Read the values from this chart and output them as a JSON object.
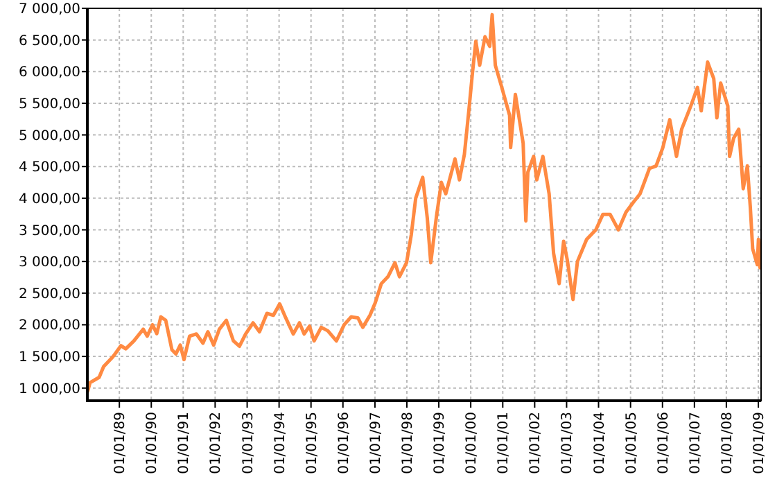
{
  "chart_data": {
    "type": "line",
    "grid": true,
    "marker": "none",
    "line_style": "solid",
    "xlim": [
      "1988-01-01",
      "2009-02-01"
    ],
    "ylim": [
      800,
      7000
    ],
    "xticks": [
      {
        "value": "1989-01-01",
        "label": "01/01/89"
      },
      {
        "value": "1990-01-01",
        "label": "01/01/90"
      },
      {
        "value": "1991-01-01",
        "label": "01/01/91"
      },
      {
        "value": "1992-01-01",
        "label": "01/01/92"
      },
      {
        "value": "1993-01-01",
        "label": "01/01/93"
      },
      {
        "value": "1994-01-01",
        "label": "01/01/94"
      },
      {
        "value": "1995-01-01",
        "label": "01/01/95"
      },
      {
        "value": "1996-01-01",
        "label": "01/01/96"
      },
      {
        "value": "1997-01-01",
        "label": "01/01/97"
      },
      {
        "value": "1998-01-01",
        "label": "01/01/98"
      },
      {
        "value": "1999-01-01",
        "label": "01/01/99"
      },
      {
        "value": "2000-01-01",
        "label": "01/01/00"
      },
      {
        "value": "2001-01-01",
        "label": "01/01/01"
      },
      {
        "value": "2002-01-01",
        "label": "01/01/02"
      },
      {
        "value": "2003-01-01",
        "label": "01/01/03"
      },
      {
        "value": "2004-01-01",
        "label": "01/01/04"
      },
      {
        "value": "2005-01-01",
        "label": "01/01/05"
      },
      {
        "value": "2006-01-01",
        "label": "01/01/06"
      },
      {
        "value": "2007-01-01",
        "label": "01/01/07"
      },
      {
        "value": "2008-01-01",
        "label": "01/01/08"
      },
      {
        "value": "2009-01-01",
        "label": "01/01/09"
      }
    ],
    "yticks": [
      {
        "value": 1000,
        "label": "1 000,00"
      },
      {
        "value": 1500,
        "label": "1 500,00"
      },
      {
        "value": 2000,
        "label": "2 000,00"
      },
      {
        "value": 2500,
        "label": "2 500,00"
      },
      {
        "value": 3000,
        "label": "3 000,00"
      },
      {
        "value": 3500,
        "label": "3 500,00"
      },
      {
        "value": 4000,
        "label": "4 000,00"
      },
      {
        "value": 4500,
        "label": "4 500,00"
      },
      {
        "value": 5000,
        "label": "5 000,00"
      },
      {
        "value": 5500,
        "label": "5 500,00"
      },
      {
        "value": 6000,
        "label": "6 000,00"
      },
      {
        "value": 6500,
        "label": "6 500,00"
      },
      {
        "value": 7000,
        "label": "7 000,00"
      }
    ],
    "x": [
      "1988-01-05",
      "1988-02-01",
      "1988-05-15",
      "1988-07-05",
      "1988-10-20",
      "1989-01-20",
      "1989-03-15",
      "1989-06-15",
      "1989-10-01",
      "1989-11-15",
      "1990-01-15",
      "1990-03-05",
      "1990-04-20",
      "1990-06-15",
      "1990-08-25",
      "1990-10-10",
      "1990-11-28",
      "1991-01-10",
      "1991-03-15",
      "1991-06-01",
      "1991-08-15",
      "1991-10-10",
      "1991-12-15",
      "1992-02-18",
      "1992-05-08",
      "1992-07-28",
      "1992-10-05",
      "1992-12-15",
      "1993-03-10",
      "1993-05-22",
      "1993-08-15",
      "1993-10-28",
      "1994-01-08",
      "1994-03-18",
      "1994-06-12",
      "1994-08-22",
      "1994-10-15",
      "1994-12-15",
      "1995-02-05",
      "1995-04-28",
      "1995-07-12",
      "1995-10-18",
      "1996-01-15",
      "1996-04-05",
      "1996-06-20",
      "1996-08-15",
      "1996-11-05",
      "1997-01-05",
      "1997-03-15",
      "1997-05-30",
      "1997-08-18",
      "1997-10-08",
      "1997-12-28",
      "1998-02-20",
      "1998-04-12",
      "1998-07-01",
      "1998-08-22",
      "1998-10-01",
      "1998-12-05",
      "1999-01-30",
      "1999-03-22",
      "1999-07-05",
      "1999-08-25",
      "1999-10-20",
      "1999-12-10",
      "2000-01-20",
      "2000-02-28",
      "2000-04-12",
      "2000-06-12",
      "2000-08-05",
      "2000-09-02",
      "2000-10-08",
      "2000-12-15",
      "2001-03-20",
      "2001-04-01",
      "2001-05-25",
      "2001-08-22",
      "2001-09-22",
      "2001-10-15",
      "2001-12-20",
      "2002-01-25",
      "2002-04-05",
      "2002-06-15",
      "2002-08-05",
      "2002-10-08",
      "2002-11-28",
      "2003-01-08",
      "2003-03-15",
      "2003-05-05",
      "2003-08-18",
      "2003-12-01",
      "2004-02-20",
      "2004-05-12",
      "2004-08-15",
      "2004-11-10",
      "2005-01-30",
      "2005-04-20",
      "2005-08-05",
      "2005-10-20",
      "2006-01-05",
      "2006-03-25",
      "2006-06-10",
      "2006-08-08",
      "2006-11-20",
      "2007-02-05",
      "2007-03-20",
      "2007-06-01",
      "2007-08-10",
      "2007-09-15",
      "2007-10-28",
      "2008-01-18",
      "2008-02-07",
      "2008-03-25",
      "2008-05-22",
      "2008-07-12",
      "2008-08-28",
      "2008-10-01",
      "2008-10-28",
      "2008-12-20",
      "2009-01-02",
      "2009-01-20"
    ],
    "series": [
      {
        "color": "#ff8a42",
        "values": [
          950,
          1087,
          1170,
          1340,
          1495,
          1670,
          1620,
          1743,
          1930,
          1820,
          2000,
          1860,
          2125,
          2070,
          1605,
          1540,
          1680,
          1450,
          1820,
          1855,
          1710,
          1890,
          1680,
          1930,
          2070,
          1745,
          1660,
          1855,
          2030,
          1890,
          2180,
          2150,
          2330,
          2110,
          1855,
          2030,
          1855,
          1980,
          1745,
          1960,
          1905,
          1745,
          2000,
          2125,
          2110,
          1960,
          2150,
          2350,
          2650,
          2760,
          2980,
          2760,
          2980,
          3420,
          4000,
          4330,
          3690,
          2980,
          3710,
          4250,
          4070,
          4620,
          4290,
          4690,
          5380,
          5970,
          6480,
          6100,
          6550,
          6400,
          6900,
          6100,
          5780,
          5310,
          4800,
          5640,
          4870,
          3640,
          4410,
          4660,
          4290,
          4660,
          4070,
          3130,
          2650,
          3320,
          3030,
          2400,
          3000,
          3350,
          3500,
          3745,
          3745,
          3500,
          3780,
          3930,
          4070,
          4470,
          4510,
          4800,
          5240,
          4660,
          5090,
          5455,
          5750,
          5380,
          6150,
          5890,
          5270,
          5820,
          5455,
          4660,
          4950,
          5090,
          4150,
          4510,
          3860,
          3200,
          2950,
          3350,
          2900
        ]
      }
    ]
  }
}
